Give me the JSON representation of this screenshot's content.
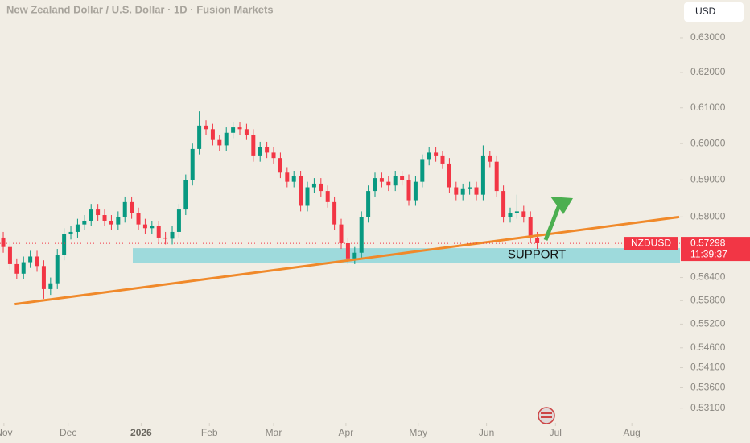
{
  "chart_data": {
    "type": "candlestick",
    "title": "New Zealand Dollar / U.S. Dollar · 1D · Fusion Markets",
    "currency_button": "USD",
    "symbol": "NZDUSD",
    "last_price": {
      "value": 0.57298,
      "label": "0.57298"
    },
    "countdown": "11:39:37",
    "annotation": "SUPPORT",
    "log": true,
    "up_color": "#089981",
    "down_color": "#f23645",
    "xlim": [
      -0.48,
      100.12
    ],
    "xticks": [
      {
        "value": 0.1,
        "label": "Nov"
      },
      {
        "value": 9.6,
        "label": "Dec"
      },
      {
        "value": 20.4,
        "label": "2026"
      },
      {
        "value": 30.5,
        "label": "Feb"
      },
      {
        "value": 40,
        "label": "Mar"
      },
      {
        "value": 50.7,
        "label": "Apr"
      },
      {
        "value": 61.4,
        "label": "May"
      },
      {
        "value": 71.5,
        "label": "Jun"
      },
      {
        "value": 81.7,
        "label": "Jul"
      },
      {
        "value": 93,
        "label": "Aug"
      }
    ],
    "ylim": [
      0.5274,
      0.6411
    ],
    "yticks": [
      {
        "value": 0.63,
        "label": "0.63000"
      },
      {
        "value": 0.62,
        "label": "0.62000"
      },
      {
        "value": 0.61,
        "label": "0.61000"
      },
      {
        "value": 0.6,
        "label": "0.60000"
      },
      {
        "value": 0.59,
        "label": "0.59000"
      },
      {
        "value": 0.58,
        "label": "0.58000"
      },
      {
        "value": 0.564,
        "label": "0.56400"
      },
      {
        "value": 0.558,
        "label": "0.55800"
      },
      {
        "value": 0.552,
        "label": "0.55200"
      },
      {
        "value": 0.546,
        "label": "0.54600"
      },
      {
        "value": 0.541,
        "label": "0.54100"
      },
      {
        "value": 0.536,
        "label": "0.53600"
      },
      {
        "value": 0.531,
        "label": "0.53100"
      }
    ],
    "support_zone": {
      "color": "#8fd6da",
      "ylim": [
        0.5677,
        0.5717
      ]
    },
    "trendline": {
      "color": "#f0892a",
      "x": [
        1.7,
        100
      ],
      "y": [
        0.5571,
        0.58
      ]
    },
    "open": [
      0.5745,
      0.572,
      0.5675,
      0.565,
      0.568,
      0.5695,
      0.567,
      0.561,
      0.5625,
      0.57,
      0.5755,
      0.576,
      0.578,
      0.579,
      0.582,
      0.5805,
      0.579,
      0.578,
      0.58,
      0.584,
      0.581,
      0.578,
      0.577,
      0.5775,
      0.5745,
      0.5742,
      0.576,
      0.582,
      0.59,
      0.5985,
      0.605,
      0.604,
      0.601,
      0.5995,
      0.603,
      0.6045,
      0.604,
      0.6025,
      0.5965,
      0.599,
      0.5975,
      0.596,
      0.592,
      0.5895,
      0.591,
      0.583,
      0.588,
      0.589,
      0.587,
      0.584,
      0.578,
      0.573,
      0.569,
      0.5705,
      0.58,
      0.587,
      0.5905,
      0.5895,
      0.5885,
      0.591,
      0.59,
      0.5845,
      0.5895,
      0.5955,
      0.5975,
      0.5965,
      0.5945,
      0.588,
      0.586,
      0.5875,
      0.588,
      0.586,
      0.5965,
      0.595,
      0.587,
      0.58,
      0.581,
      0.5815,
      0.58,
      0.5745
    ],
    "high": [
      0.576,
      0.5735,
      0.569,
      0.5695,
      0.571,
      0.571,
      0.5685,
      0.564,
      0.5715,
      0.577,
      0.5775,
      0.5795,
      0.5805,
      0.5835,
      0.5835,
      0.582,
      0.5805,
      0.5815,
      0.5855,
      0.5855,
      0.5825,
      0.5795,
      0.579,
      0.579,
      0.576,
      0.5775,
      0.5835,
      0.5915,
      0.6,
      0.609,
      0.6065,
      0.6055,
      0.6025,
      0.6045,
      0.606,
      0.606,
      0.6055,
      0.604,
      0.6005,
      0.6005,
      0.599,
      0.5975,
      0.5935,
      0.5925,
      0.5925,
      0.5895,
      0.5905,
      0.5905,
      0.5885,
      0.5855,
      0.5795,
      0.5745,
      0.572,
      0.5815,
      0.5885,
      0.592,
      0.592,
      0.591,
      0.5925,
      0.5925,
      0.5915,
      0.591,
      0.597,
      0.599,
      0.599,
      0.598,
      0.596,
      0.5895,
      0.589,
      0.5895,
      0.5895,
      0.5995,
      0.598,
      0.5965,
      0.5885,
      0.5825,
      0.586,
      0.583,
      0.5815,
      0.576
    ],
    "low": [
      0.5705,
      0.566,
      0.5635,
      0.5635,
      0.5665,
      0.5655,
      0.5585,
      0.5595,
      0.561,
      0.5685,
      0.574,
      0.5745,
      0.5765,
      0.5775,
      0.579,
      0.5775,
      0.5765,
      0.5765,
      0.5785,
      0.5795,
      0.5765,
      0.5755,
      0.5755,
      0.573,
      0.5727,
      0.5727,
      0.5745,
      0.5805,
      0.5885,
      0.597,
      0.6025,
      0.5995,
      0.598,
      0.598,
      0.6015,
      0.6025,
      0.601,
      0.595,
      0.595,
      0.596,
      0.5945,
      0.5905,
      0.588,
      0.588,
      0.5815,
      0.5815,
      0.5865,
      0.5855,
      0.5825,
      0.5765,
      0.5715,
      0.5675,
      0.5675,
      0.569,
      0.5785,
      0.5855,
      0.588,
      0.587,
      0.587,
      0.5885,
      0.583,
      0.583,
      0.588,
      0.594,
      0.595,
      0.593,
      0.5865,
      0.5845,
      0.5845,
      0.586,
      0.5845,
      0.5845,
      0.5935,
      0.5855,
      0.5785,
      0.5785,
      0.5795,
      0.5785,
      0.573,
      0.5715
    ],
    "close": [
      0.572,
      0.5675,
      0.565,
      0.568,
      0.5695,
      0.567,
      0.561,
      0.5625,
      0.57,
      0.5755,
      0.576,
      0.578,
      0.579,
      0.582,
      0.5805,
      0.579,
      0.578,
      0.58,
      0.584,
      0.581,
      0.578,
      0.577,
      0.5775,
      0.5745,
      0.5742,
      0.576,
      0.582,
      0.59,
      0.5985,
      0.605,
      0.604,
      0.601,
      0.5995,
      0.603,
      0.6045,
      0.604,
      0.6025,
      0.5965,
      0.599,
      0.5975,
      0.596,
      0.592,
      0.5895,
      0.591,
      0.583,
      0.588,
      0.589,
      0.587,
      0.584,
      0.578,
      0.573,
      0.569,
      0.5705,
      0.58,
      0.587,
      0.5905,
      0.5895,
      0.5885,
      0.591,
      0.59,
      0.5845,
      0.5895,
      0.5955,
      0.5975,
      0.5965,
      0.5945,
      0.588,
      0.586,
      0.5875,
      0.588,
      0.586,
      0.5965,
      0.595,
      0.587,
      0.58,
      0.581,
      0.5815,
      0.58,
      0.5745,
      0.573
    ]
  }
}
